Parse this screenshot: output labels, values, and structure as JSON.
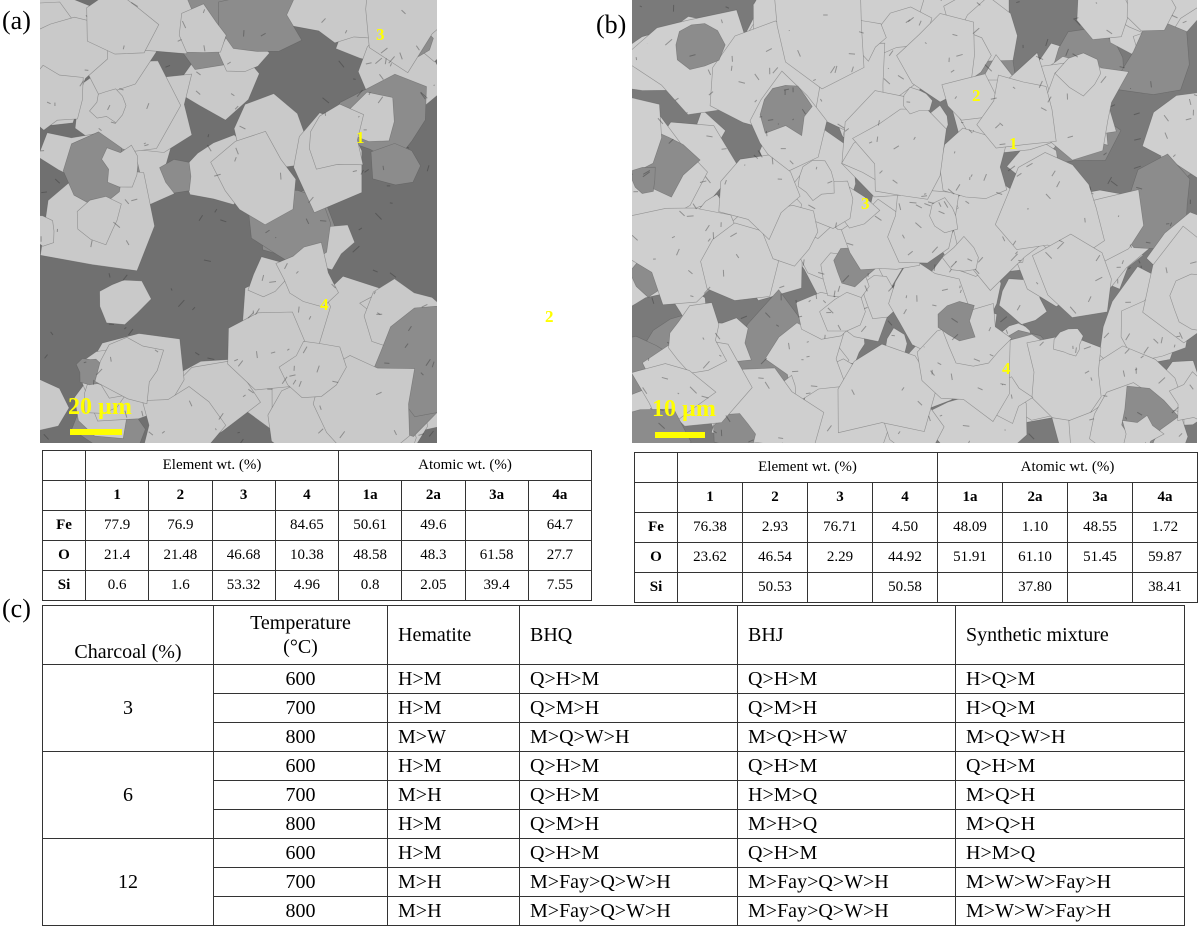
{
  "panels": [
    {
      "label": "(a)",
      "image": {
        "points": [
          "1",
          "2",
          "3",
          "4"
        ],
        "scale_bar": "20 µm"
      },
      "table": {
        "group_headers": [
          "Element wt. (%)",
          "Atomic wt. (%)"
        ],
        "columns": [
          "1",
          "2",
          "3",
          "4",
          "1a",
          "2a",
          "3a",
          "4a"
        ],
        "rows": [
          {
            "element": "Fe",
            "values": [
              "77.9",
              "76.9",
              null,
              "84.65",
              "50.61",
              "49.6",
              null,
              "64.7"
            ]
          },
          {
            "element": "O",
            "values": [
              "21.4",
              "21.48",
              "46.68",
              "10.38",
              "48.58",
              "48.3",
              "61.58",
              "27.7"
            ]
          },
          {
            "element": "Si",
            "values": [
              "0.6",
              "1.6",
              "53.32",
              "4.96",
              "0.8",
              "2.05",
              "39.4",
              "7.55"
            ]
          }
        ]
      }
    },
    {
      "label": "(b)",
      "image": {
        "points": [
          "1",
          "2",
          "3",
          "4"
        ],
        "scale_bar": "10 µm"
      },
      "table": {
        "group_headers": [
          "Element wt. (%)",
          "Atomic wt. (%)"
        ],
        "columns": [
          "1",
          "2",
          "3",
          "4",
          "1a",
          "2a",
          "3a",
          "4a"
        ],
        "rows": [
          {
            "element": "Fe",
            "values": [
              "76.38",
              "2.93",
              "76.71",
              "4.50",
              "48.09",
              "1.10",
              "48.55",
              "1.72"
            ]
          },
          {
            "element": "O",
            "values": [
              "23.62",
              "46.54",
              "2.29",
              "44.92",
              "51.91",
              "61.10",
              "51.45",
              "59.87"
            ]
          },
          {
            "element": "Si",
            "values": [
              null,
              "50.53",
              null,
              "50.58",
              null,
              "37.80",
              null,
              "38.41"
            ]
          }
        ]
      }
    },
    {
      "label": "(c)",
      "table": {
        "headers": [
          "Charcoal (%)",
          "Temperature (°C)",
          "Hematite",
          "BHQ",
          "BHJ",
          "Synthetic mixture"
        ],
        "groups": [
          {
            "charcoal": "3",
            "rows": [
              {
                "temperature": "600",
                "values": [
                  "H>M",
                  "Q>H>M",
                  "Q>H>M",
                  "H>Q>M"
                ]
              },
              {
                "temperature": "700",
                "values": [
                  "H>M",
                  "Q>M>H",
                  "Q>M>H",
                  "H>Q>M"
                ]
              },
              {
                "temperature": "800",
                "values": [
                  "M>W",
                  "M>Q>W>H",
                  "M>Q>H>W",
                  "M>Q>W>H"
                ]
              }
            ]
          },
          {
            "charcoal": "6",
            "rows": [
              {
                "temperature": "600",
                "values": [
                  "H>M",
                  "Q>H>M",
                  "Q>H>M",
                  "Q>H>M"
                ]
              },
              {
                "temperature": "700",
                "values": [
                  "M>H",
                  "Q>H>M",
                  "H>M>Q",
                  "M>Q>H"
                ]
              },
              {
                "temperature": "800",
                "values": [
                  "H>M",
                  "Q>M>H",
                  "M>H>Q",
                  "M>Q>H"
                ]
              }
            ]
          },
          {
            "charcoal": "12",
            "rows": [
              {
                "temperature": "600",
                "values": [
                  "H>M",
                  "Q>H>M",
                  "Q>H>M",
                  "H>M>Q"
                ]
              },
              {
                "temperature": "700",
                "values": [
                  "M>H",
                  "M>Fay>Q>W>H",
                  "M>Fay>Q>W>H",
                  "M>W>W>Fay>H"
                ]
              },
              {
                "temperature": "800",
                "values": [
                  "M>H",
                  "M>Fay>Q>W>H",
                  "M>Fay>Q>W>H",
                  "M>W>W>Fay>H"
                ]
              }
            ]
          }
        ]
      }
    }
  ]
}
